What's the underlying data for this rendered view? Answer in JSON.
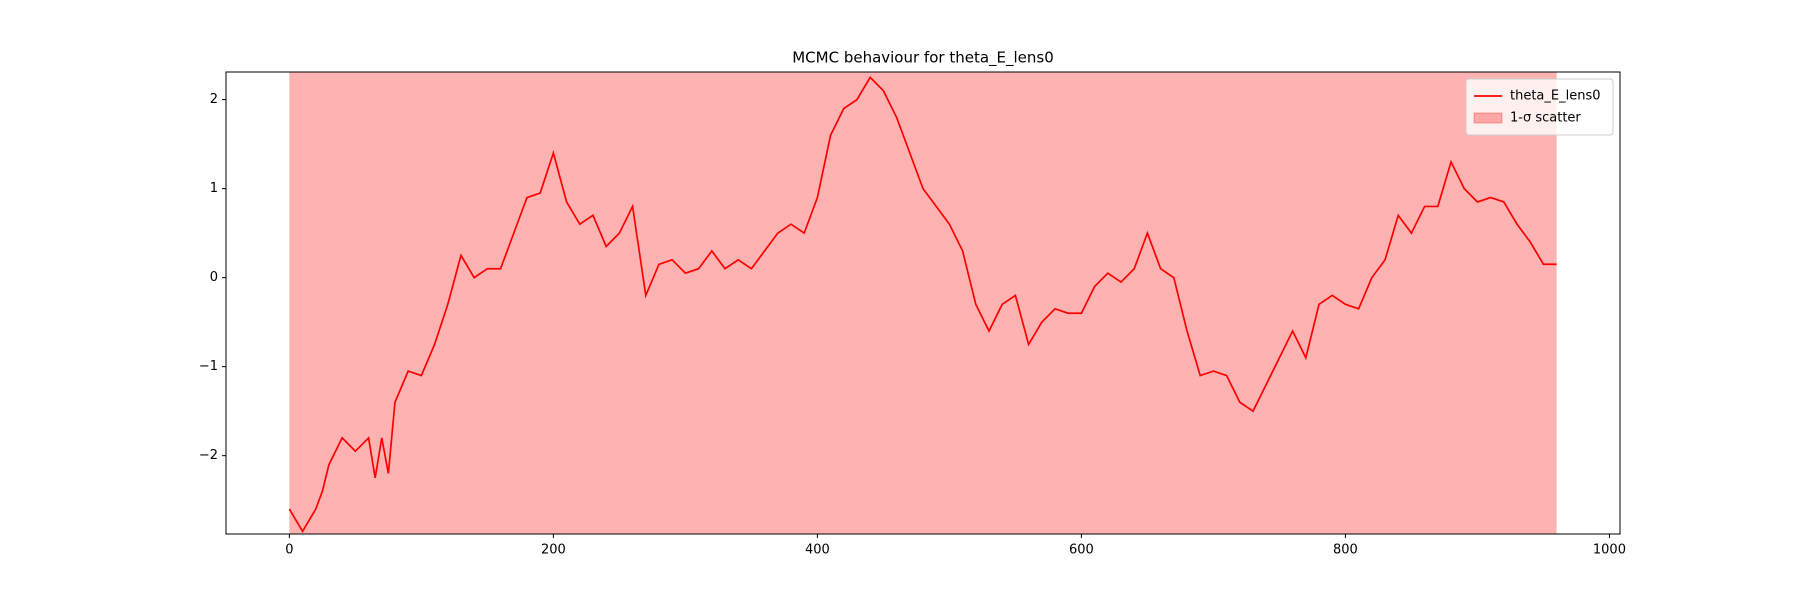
{
  "chart_data": {
    "type": "line",
    "title": "MCMC behaviour for theta_E_lens0",
    "x": [
      0,
      10,
      20,
      25,
      30,
      40,
      50,
      60,
      65,
      70,
      75,
      80,
      90,
      100,
      110,
      120,
      130,
      140,
      150,
      160,
      170,
      180,
      190,
      200,
      210,
      220,
      230,
      240,
      250,
      260,
      270,
      280,
      290,
      300,
      310,
      320,
      330,
      340,
      350,
      360,
      370,
      380,
      390,
      400,
      410,
      420,
      430,
      440,
      450,
      460,
      470,
      480,
      490,
      500,
      510,
      520,
      530,
      540,
      550,
      560,
      570,
      580,
      590,
      600,
      610,
      620,
      630,
      640,
      650,
      660,
      670,
      680,
      690,
      700,
      710,
      720,
      730,
      740,
      750,
      760,
      770,
      780,
      790,
      800,
      810,
      820,
      830,
      840,
      850,
      860,
      870,
      880,
      890,
      900,
      910,
      920,
      930,
      940,
      950,
      960
    ],
    "series": [
      {
        "name": "theta_E_lens0",
        "color": "#ff0000",
        "values": [
          -2.6,
          -2.85,
          -2.6,
          -2.4,
          -2.1,
          -1.8,
          -1.95,
          -1.8,
          -2.25,
          -1.8,
          -2.2,
          -1.4,
          -1.05,
          -1.1,
          -0.75,
          -0.3,
          0.25,
          0.0,
          0.1,
          0.1,
          0.5,
          0.9,
          0.95,
          1.4,
          0.85,
          0.6,
          0.7,
          0.35,
          0.5,
          0.8,
          -0.2,
          0.15,
          0.2,
          0.05,
          0.1,
          0.3,
          0.1,
          0.2,
          0.1,
          0.3,
          0.5,
          0.6,
          0.5,
          0.9,
          1.6,
          1.9,
          2.0,
          2.25,
          2.1,
          1.8,
          1.4,
          1.0,
          0.8,
          0.6,
          0.3,
          -0.3,
          -0.6,
          -0.3,
          -0.2,
          -0.75,
          -0.5,
          -0.35,
          -0.4,
          -0.4,
          -0.1,
          0.05,
          -0.05,
          0.1,
          0.5,
          0.1,
          0.0,
          -0.6,
          -1.1,
          -1.05,
          -1.1,
          -1.4,
          -1.5,
          -1.2,
          -0.9,
          -0.6,
          -0.9,
          -0.3,
          -0.2,
          -0.3,
          -0.35,
          0.0,
          0.2,
          0.7,
          0.5,
          0.8,
          0.8,
          1.3,
          1.0,
          0.85,
          0.9,
          0.85,
          0.6,
          0.4,
          0.15,
          0.15
        ]
      }
    ],
    "band": {
      "name": "1-σ scatter",
      "color": "#ff0000",
      "x": [
        0,
        960
      ]
    },
    "xlim": [
      -48,
      1008
    ],
    "ylim": [
      -2.88,
      2.31
    ],
    "xticks": [
      0,
      200,
      400,
      600,
      800,
      1000
    ],
    "yticks": [
      -2,
      -1,
      0,
      1,
      2
    ],
    "grid": false,
    "legend": "upper right"
  }
}
